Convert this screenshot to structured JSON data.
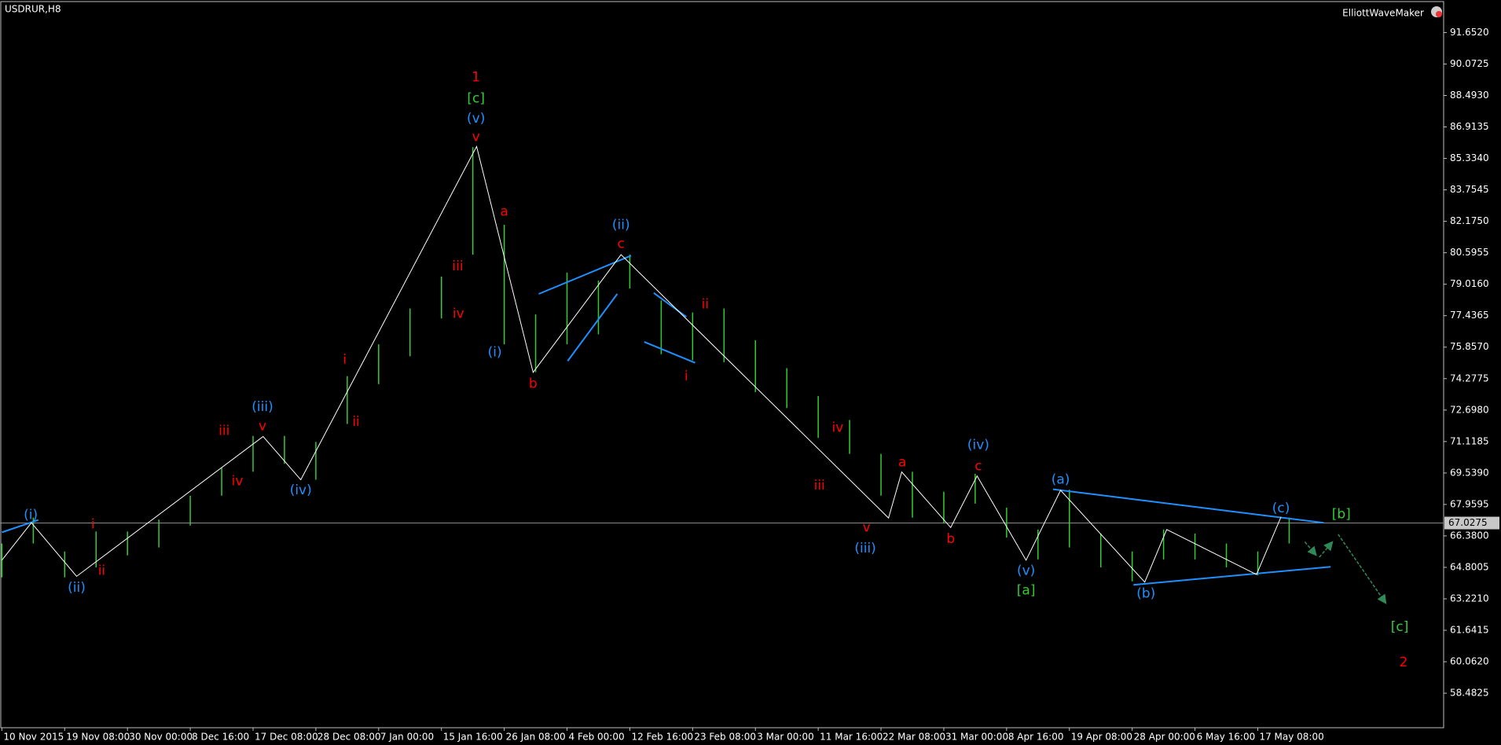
{
  "chart_data": {
    "type": "ohlc",
    "title": "USDRUR,H8",
    "indicator": "ElliottWaveMaker",
    "categories": [
      "10 Nov 2015",
      "19 Nov 08:00",
      "30 Nov 00:00",
      "8 Dec 16:00",
      "17 Dec 08:00",
      "28 Dec 08:00",
      "7 Jan 00:00",
      "15 Jan 16:00",
      "26 Jan 08:00",
      "4 Feb 00:00",
      "12 Feb 16:00",
      "23 Feb 08:00",
      "3 Mar 00:00",
      "11 Mar 16:00",
      "22 Mar 08:00",
      "31 Mar 00:00",
      "8 Apr 16:00",
      "19 Apr 08:00",
      "28 Apr 00:00",
      "6 May 16:00",
      "17 May 08:00"
    ],
    "xlim": [
      -0.03,
      22.96
    ],
    "ylim": [
      56.75,
      93.286
    ],
    "yticks": [
      {
        "value": 91.652,
        "label": "91.6520"
      },
      {
        "value": 90.0725,
        "label": "90.0725"
      },
      {
        "value": 88.493,
        "label": "88.4930"
      },
      {
        "value": 86.9135,
        "label": "86.9135"
      },
      {
        "value": 85.334,
        "label": "85.3340"
      },
      {
        "value": 83.7545,
        "label": "83.7545"
      },
      {
        "value": 82.175,
        "label": "82.1750"
      },
      {
        "value": 80.5955,
        "label": "80.5955"
      },
      {
        "value": 79.016,
        "label": "79.0160"
      },
      {
        "value": 77.4365,
        "label": "77.4365"
      },
      {
        "value": 75.857,
        "label": "75.8570"
      },
      {
        "value": 74.2775,
        "label": "74.2775"
      },
      {
        "value": 72.698,
        "label": "72.6980"
      },
      {
        "value": 71.1185,
        "label": "71.1185"
      },
      {
        "value": 69.539,
        "label": "69.5390"
      },
      {
        "value": 67.9595,
        "label": "67.9595"
      },
      {
        "value": 66.38,
        "label": "66.3800"
      },
      {
        "value": 64.8005,
        "label": "64.8005"
      },
      {
        "value": 63.221,
        "label": "63.2210"
      },
      {
        "value": 61.6415,
        "label": "61.6415"
      },
      {
        "value": 60.062,
        "label": "60.0620"
      },
      {
        "value": 58.4825,
        "label": "58.4825"
      }
    ],
    "current_price": {
      "value": 67.0275,
      "label": "67.0275"
    },
    "bars": {
      "color": "#32cd32",
      "x": [
        0,
        0.5,
        1,
        1.5,
        2,
        2.5,
        3,
        3.5,
        4,
        4.5,
        5,
        5.5,
        6,
        6.5,
        7,
        7.5,
        8,
        8.5,
        9,
        9.5,
        10,
        10.5,
        11,
        11.5,
        12,
        12.5,
        13,
        13.5,
        14,
        14.5,
        15,
        15.5,
        16,
        16.5,
        17,
        17.5,
        18,
        18.5,
        19,
        19.5,
        20,
        20.5
      ],
      "low": [
        64.3,
        66.0,
        64.3,
        64.8,
        65.4,
        65.8,
        66.9,
        68.4,
        69.6,
        70.0,
        69.2,
        72.0,
        74.0,
        75.4,
        77.3,
        80.5,
        76.0,
        74.6,
        76.0,
        76.5,
        78.8,
        75.5,
        75.2,
        75.1,
        73.6,
        72.8,
        71.3,
        70.5,
        68.4,
        67.3,
        67.0,
        68.0,
        66.3,
        65.2,
        65.8,
        64.8,
        64.1,
        65.2,
        65.2,
        64.8,
        64.4,
        66.0
      ],
      "high": [
        66.0,
        67.3,
        65.6,
        66.6,
        66.6,
        67.2,
        68.4,
        69.8,
        71.4,
        71.4,
        71.1,
        74.4,
        76.0,
        77.8,
        79.4,
        85.9,
        82.0,
        77.5,
        79.6,
        79.2,
        80.5,
        78.2,
        77.6,
        77.8,
        76.2,
        74.8,
        73.4,
        72.2,
        70.5,
        69.6,
        68.6,
        69.5,
        67.8,
        66.7,
        68.7,
        66.5,
        65.6,
        66.7,
        66.5,
        66.0,
        65.6,
        67.3
      ]
    },
    "wave": {
      "color": "#ffffff",
      "x": [
        0,
        0.47,
        1.19,
        4.16,
        4.76,
        7.56,
        8.46,
        9.86,
        14.12,
        14.33,
        15.11,
        15.53,
        16.31,
        16.86,
        18.2,
        18.55,
        19.98,
        20.37
      ],
      "y": [
        65.16,
        67.04,
        64.35,
        71.37,
        69.2,
        85.93,
        74.59,
        80.5,
        67.28,
        69.59,
        66.8,
        69.39,
        65.16,
        68.67,
        64.06,
        66.7,
        64.44,
        67.33
      ]
    },
    "trendlines": {
      "color": "#1e90ff",
      "lines": [
        [
          0,
          66.56,
          0.58,
          67.18
        ],
        [
          8.55,
          78.53,
          10.02,
          80.45
        ],
        [
          9.01,
          75.16,
          9.8,
          78.53
        ],
        [
          10.38,
          78.58,
          10.9,
          77.38
        ],
        [
          10.23,
          76.12,
          11.04,
          75.07
        ],
        [
          16.74,
          68.72,
          21.05,
          67.04
        ],
        [
          18.02,
          63.92,
          21.16,
          64.83
        ]
      ]
    },
    "arrows": {
      "color": "#2e8b57",
      "lines": [
        [
          20.75,
          66.08,
          20.93,
          65.41
        ],
        [
          20.98,
          65.31,
          21.19,
          66.08
        ],
        [
          21.28,
          66.46,
          22.04,
          63.0
        ]
      ]
    },
    "labels": [
      {
        "text": "1",
        "x": 7.55,
        "y": 89.39,
        "color": "#ff0000"
      },
      {
        "text": "[c]",
        "x": 7.55,
        "y": 88.33,
        "color": "#32cd32"
      },
      {
        "text": "(v)",
        "x": 7.55,
        "y": 87.33,
        "color": "#1e90ff"
      },
      {
        "text": "v",
        "x": 7.55,
        "y": 86.41,
        "color": "#ff0000"
      },
      {
        "text": "a",
        "x": 8.0,
        "y": 82.66,
        "color": "#ff0000"
      },
      {
        "text": "(i)",
        "x": 7.85,
        "y": 75.59,
        "color": "#1e90ff"
      },
      {
        "text": "b",
        "x": 8.46,
        "y": 74.01,
        "color": "#ff0000"
      },
      {
        "text": "(ii)",
        "x": 9.86,
        "y": 81.99,
        "color": "#1e90ff"
      },
      {
        "text": "c",
        "x": 9.86,
        "y": 81.03,
        "color": "#ff0000"
      },
      {
        "text": "ii",
        "x": 11.2,
        "y": 78.0,
        "color": "#ff0000"
      },
      {
        "text": "i",
        "x": 10.9,
        "y": 74.39,
        "color": "#ff0000"
      },
      {
        "text": "iii",
        "x": 7.26,
        "y": 79.92,
        "color": "#ff0000"
      },
      {
        "text": "iv",
        "x": 7.27,
        "y": 77.52,
        "color": "#ff0000"
      },
      {
        "text": "(iii)",
        "x": 4.15,
        "y": 72.85,
        "color": "#1e90ff"
      },
      {
        "text": "v",
        "x": 4.15,
        "y": 71.89,
        "color": "#ff0000"
      },
      {
        "text": "iii",
        "x": 3.54,
        "y": 71.65,
        "color": "#ff0000"
      },
      {
        "text": "iv",
        "x": 3.75,
        "y": 69.11,
        "color": "#ff0000"
      },
      {
        "text": "(iv)",
        "x": 4.76,
        "y": 68.67,
        "color": "#1e90ff"
      },
      {
        "text": "i",
        "x": 5.46,
        "y": 75.21,
        "color": "#ff0000"
      },
      {
        "text": "ii",
        "x": 5.64,
        "y": 72.09,
        "color": "#ff0000"
      },
      {
        "text": "(i)",
        "x": 0.46,
        "y": 67.42,
        "color": "#1e90ff"
      },
      {
        "text": "(ii)",
        "x": 1.19,
        "y": 63.77,
        "color": "#1e90ff"
      },
      {
        "text": "i",
        "x": 1.45,
        "y": 66.94,
        "color": "#ff0000"
      },
      {
        "text": "ii",
        "x": 1.59,
        "y": 64.63,
        "color": "#ff0000"
      },
      {
        "text": "iv",
        "x": 13.31,
        "y": 71.8,
        "color": "#ff0000"
      },
      {
        "text": "iii",
        "x": 13.02,
        "y": 68.91,
        "color": "#ff0000"
      },
      {
        "text": "v",
        "x": 13.77,
        "y": 66.8,
        "color": "#ff0000"
      },
      {
        "text": "(iii)",
        "x": 13.75,
        "y": 65.74,
        "color": "#1e90ff"
      },
      {
        "text": "a",
        "x": 14.34,
        "y": 70.07,
        "color": "#ff0000"
      },
      {
        "text": "b",
        "x": 15.11,
        "y": 66.22,
        "color": "#ff0000"
      },
      {
        "text": "c",
        "x": 15.55,
        "y": 69.87,
        "color": "#ff0000"
      },
      {
        "text": "(iv)",
        "x": 15.55,
        "y": 70.93,
        "color": "#1e90ff"
      },
      {
        "text": "(v)",
        "x": 16.31,
        "y": 64.63,
        "color": "#1e90ff"
      },
      {
        "text": "[a]",
        "x": 16.31,
        "y": 63.63,
        "color": "#32cd32"
      },
      {
        "text": "(a)",
        "x": 16.86,
        "y": 69.2,
        "color": "#1e90ff"
      },
      {
        "text": "(b)",
        "x": 18.22,
        "y": 63.48,
        "color": "#1e90ff"
      },
      {
        "text": "(c)",
        "x": 20.37,
        "y": 67.76,
        "color": "#1e90ff"
      },
      {
        "text": "[b]",
        "x": 21.33,
        "y": 67.47,
        "color": "#32cd32"
      },
      {
        "text": "[c]",
        "x": 22.26,
        "y": 61.8,
        "color": "#32cd32"
      },
      {
        "text": "2",
        "x": 22.32,
        "y": 60.02,
        "color": "#ff0000"
      }
    ]
  }
}
